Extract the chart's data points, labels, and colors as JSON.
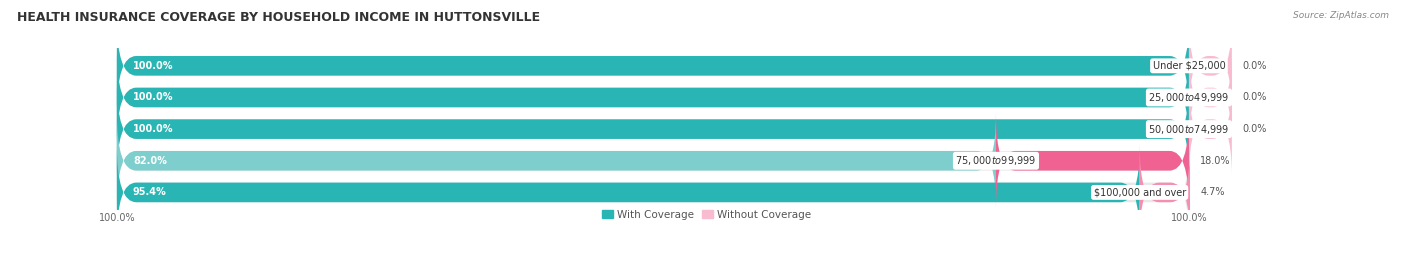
{
  "title": "HEALTH INSURANCE COVERAGE BY HOUSEHOLD INCOME IN HUTTONSVILLE",
  "source": "Source: ZipAtlas.com",
  "categories": [
    "Under $25,000",
    "$25,000 to $49,999",
    "$50,000 to $74,999",
    "$75,000 to $99,999",
    "$100,000 and over"
  ],
  "with_coverage": [
    100.0,
    100.0,
    100.0,
    82.0,
    95.4
  ],
  "without_coverage": [
    0.0,
    0.0,
    0.0,
    18.0,
    4.7
  ],
  "color_with_dark": "#2ab5b5",
  "color_with_light": "#7ecece",
  "color_without_dark": "#f06292",
  "color_without_light": "#f8bbd0",
  "bar_bg_color": "#e8e8e8",
  "title_fontsize": 9,
  "label_fontsize": 7,
  "cat_fontsize": 7,
  "tick_fontsize": 7,
  "legend_fontsize": 7.5
}
